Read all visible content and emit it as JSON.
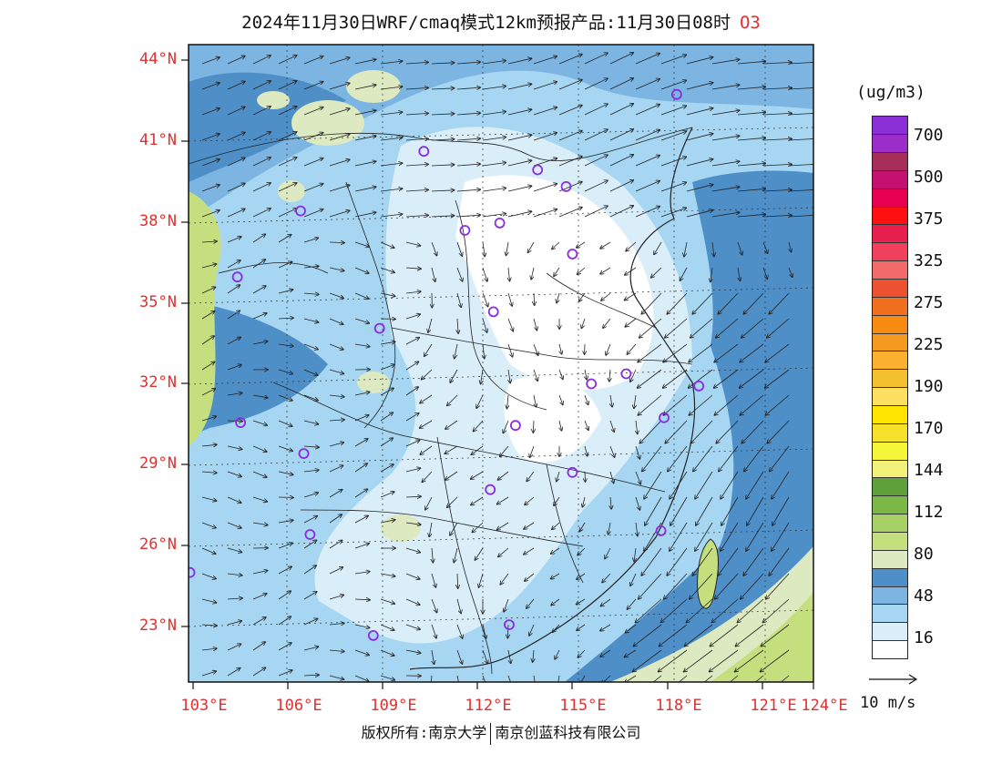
{
  "title": {
    "text": "2024年11月30日WRF/cmaq模式12km预报产品:11月30日08时",
    "pollutant": "O3"
  },
  "lat_labels": [
    "44°N",
    "41°N",
    "38°N",
    "35°N",
    "32°N",
    "29°N",
    "26°N",
    "23°N"
  ],
  "lon_labels": [
    "103°E",
    "106°E",
    "109°E",
    "112°E",
    "115°E",
    "118°E",
    "121°E",
    "124°E"
  ],
  "colorbar": {
    "unit": "(ug/m3)",
    "labels": [
      "16",
      "48",
      "80",
      "112",
      "144",
      "170",
      "190",
      "225",
      "275",
      "325",
      "375",
      "500",
      "700"
    ],
    "colors": [
      "#ffffff",
      "#d9eef8",
      "#a6d6f2",
      "#7cb5e2",
      "#4f8fc8",
      "#dde9c0",
      "#c6df7e",
      "#a7d164",
      "#7cb845",
      "#5fa03a",
      "#f2f27a",
      "#f5f53a",
      "#f5e12a",
      "#ffe500",
      "#fde060",
      "#f5c030",
      "#fbb030",
      "#f59a20",
      "#f78a10",
      "#f07020",
      "#ec5230",
      "#f26a6a",
      "#f0405c",
      "#e82050",
      "#ff1010",
      "#e80050",
      "#c41070",
      "#a82e5a",
      "#9b2ec8",
      "#8b2fd6"
    ]
  },
  "colors": {
    "axis_labels": "#e03030",
    "station_marker": "#8a2be2",
    "land_outline": "#222222"
  },
  "wind_scale": {
    "label": "10 m/s"
  },
  "stations": [
    {
      "lon": 118.3,
      "lat": 43.1
    },
    {
      "lon": 110.3,
      "lat": 40.8
    },
    {
      "lon": 113.9,
      "lat": 40.2
    },
    {
      "lon": 114.8,
      "lat": 39.6
    },
    {
      "lon": 106.4,
      "lat": 38.5
    },
    {
      "lon": 111.6,
      "lat": 37.9
    },
    {
      "lon": 112.7,
      "lat": 38.2
    },
    {
      "lon": 115.0,
      "lat": 37.1
    },
    {
      "lon": 104.4,
      "lat": 36.0
    },
    {
      "lon": 112.5,
      "lat": 34.9
    },
    {
      "lon": 108.9,
      "lat": 34.2
    },
    {
      "lon": 115.6,
      "lat": 32.3
    },
    {
      "lon": 116.7,
      "lat": 32.7
    },
    {
      "lon": 119.0,
      "lat": 32.3
    },
    {
      "lon": 117.9,
      "lat": 31.1
    },
    {
      "lon": 104.5,
      "lat": 30.6
    },
    {
      "lon": 113.2,
      "lat": 30.7
    },
    {
      "lon": 106.5,
      "lat": 29.5
    },
    {
      "lon": 115.0,
      "lat": 29.0
    },
    {
      "lon": 112.4,
      "lat": 28.3
    },
    {
      "lon": 117.8,
      "lat": 26.9
    },
    {
      "lon": 106.7,
      "lat": 26.5
    },
    {
      "lon": 102.9,
      "lat": 25.0
    },
    {
      "lon": 108.7,
      "lat": 22.8
    },
    {
      "lon": 113.0,
      "lat": 23.3
    }
  ],
  "copyright": {
    "left": "版权所有:南京大学",
    "right": "南京创蓝科技有限公司"
  }
}
